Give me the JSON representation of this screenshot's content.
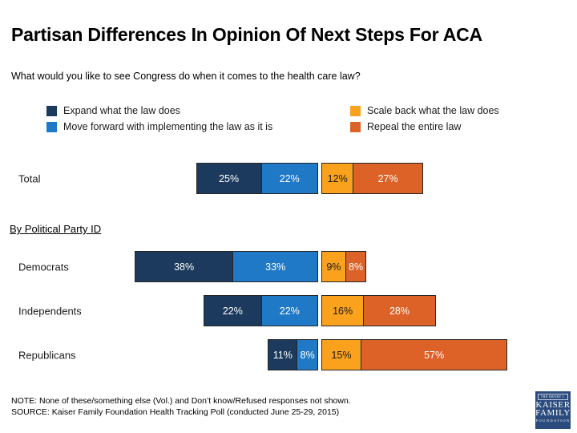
{
  "title": "Partisan Differences In Opinion Of Next Steps For ACA",
  "question": "What would you like to see Congress do when it comes to the health care law?",
  "section_label": "By Political Party ID",
  "note": "NOTE: None of these/something else (Vol.) and Don’t know/Refused responses not shown.",
  "source": "SOURCE: Kaiser Family Foundation Health Tracking Poll (conducted June 25-29, 2015)",
  "logo": {
    "line1": "THE HENRY J.",
    "line2": "KAISER",
    "line3": "FAMILY",
    "line4": "FOUNDATION",
    "bg_color": "#2b4b7d"
  },
  "chart_data": {
    "type": "bar",
    "subtype": "horizontal-diverging-stacked",
    "title": "Partisan Differences In Opinion Of Next Steps For ACA",
    "question": "What would you like to see Congress do when it comes to the health care law?",
    "categories": [
      "Total",
      "Democrats",
      "Independents",
      "Republicans"
    ],
    "series": [
      {
        "name": "Expand what the law does",
        "color": "#1b3a5e",
        "text_color": "#ffffff",
        "values": [
          25,
          38,
          22,
          11
        ]
      },
      {
        "name": "Move forward with implementing the law as it is",
        "color": "#1f79c6",
        "text_color": "#ffffff",
        "values": [
          22,
          33,
          22,
          8
        ]
      },
      {
        "name": "Scale back what the law does",
        "color": "#faa21d",
        "text_color": "#1a1a1a",
        "values": [
          12,
          9,
          16,
          15
        ]
      },
      {
        "name": "Repeal the entire law",
        "color": "#dd6227",
        "text_color": "#ffffff",
        "values": [
          27,
          8,
          28,
          57
        ]
      }
    ],
    "left_series_indexes": [
      0,
      1
    ],
    "right_series_indexes": [
      2,
      3
    ],
    "value_suffix": "%",
    "legend_position": "top",
    "axes": "none",
    "group_label": "By Political Party ID"
  }
}
